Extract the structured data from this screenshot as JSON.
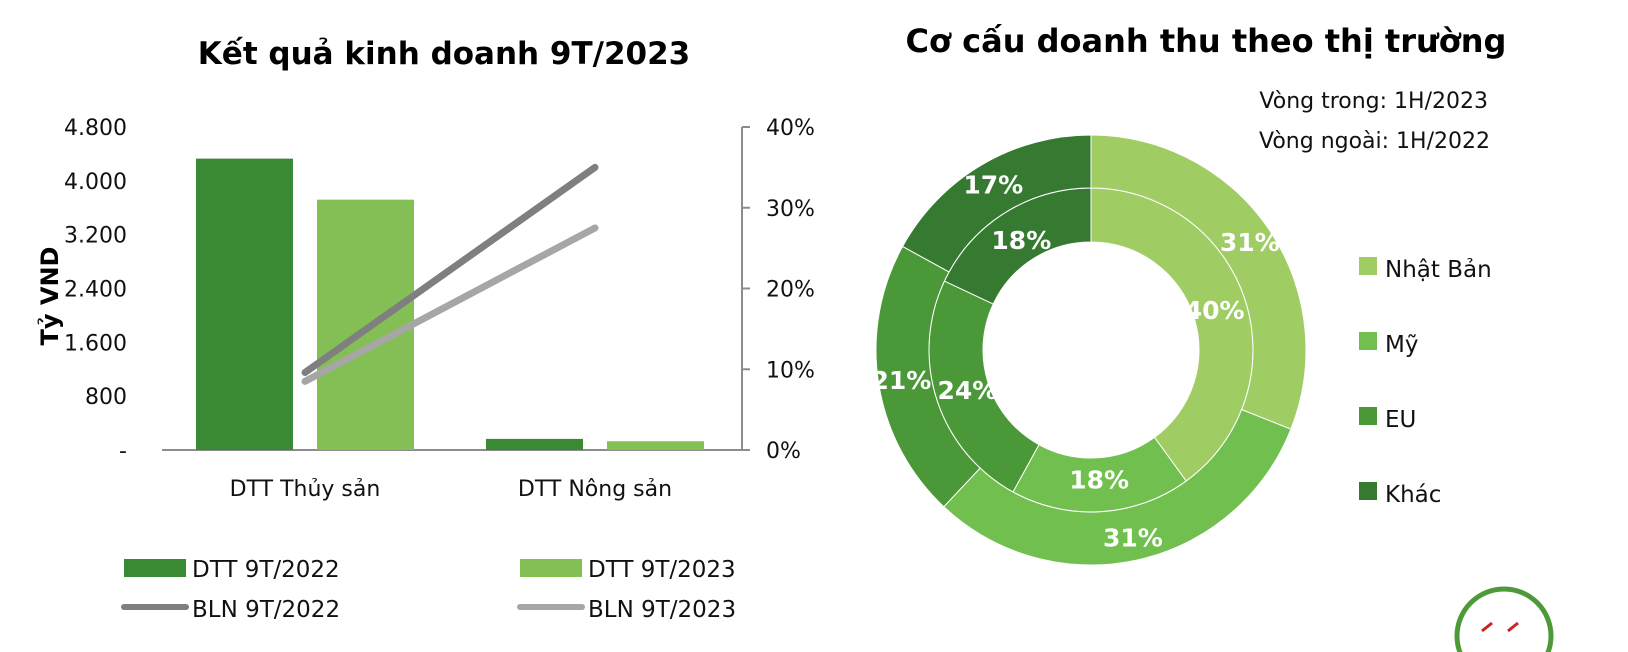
{
  "colors": {
    "dtt2022": "#3a8a34",
    "dtt2023": "#84bf55",
    "bln2022": "#7f7f7f",
    "bln2023": "#a6a6a6",
    "axis": "#8c8c8c",
    "page_badge": "#4e9a3a",
    "page_badge_text": "#cc2222"
  },
  "chart_data": [
    {
      "type": "bar",
      "title": "Kết quả kinh doanh 9T/2023",
      "ylabel": "Tỷ VND",
      "categories": [
        "DTT Thủy sản",
        "DTT Nông sản"
      ],
      "ylim": [
        0,
        4800
      ],
      "yticks": [
        "-",
        "800",
        "1.600",
        "2.400",
        "3.200",
        "4.000",
        "4.800"
      ],
      "y2lim": [
        0,
        40
      ],
      "y2ticks": [
        "0%",
        "10%",
        "20%",
        "30%",
        "40%"
      ],
      "grid": false,
      "legend_position": "bottom",
      "series": [
        {
          "name": "DTT 9T/2022",
          "kind": "bar",
          "axis": "left",
          "values": [
            4330,
            165
          ],
          "color": "#3a8a34"
        },
        {
          "name": "DTT 9T/2023",
          "kind": "bar",
          "axis": "left",
          "values": [
            3720,
            130
          ],
          "color": "#84bf55"
        },
        {
          "name": "BLN 9T/2022",
          "kind": "line",
          "axis": "right",
          "values": [
            9.6,
            35.0
          ],
          "color": "#7f7f7f"
        },
        {
          "name": "BLN 9T/2023",
          "kind": "line",
          "axis": "right",
          "values": [
            8.5,
            27.5
          ],
          "color": "#a6a6a6"
        }
      ]
    },
    {
      "type": "pie",
      "title": "Cơ cấu doanh thu theo thị trường",
      "subtitles": [
        "Vòng trong: 1H/2023",
        "Vòng ngoài: 1H/2022"
      ],
      "legend_position": "right",
      "categories": [
        "Nhật Bản",
        "Mỹ",
        "EU",
        "Khác"
      ],
      "colors": [
        "#a0cd63",
        "#70bf4f",
        "#4a9838",
        "#367a32"
      ],
      "rings": [
        {
          "name": "Vòng trong",
          "period": "1H/2023",
          "values": [
            40,
            18,
            24,
            18
          ],
          "labels": [
            "40%",
            "18%",
            "24%",
            "18%"
          ]
        },
        {
          "name": "Vòng ngoài",
          "period": "1H/2022",
          "values": [
            31,
            31,
            21,
            17
          ],
          "labels": [
            "31%",
            "31%",
            "21%",
            "17%"
          ]
        }
      ]
    }
  ]
}
